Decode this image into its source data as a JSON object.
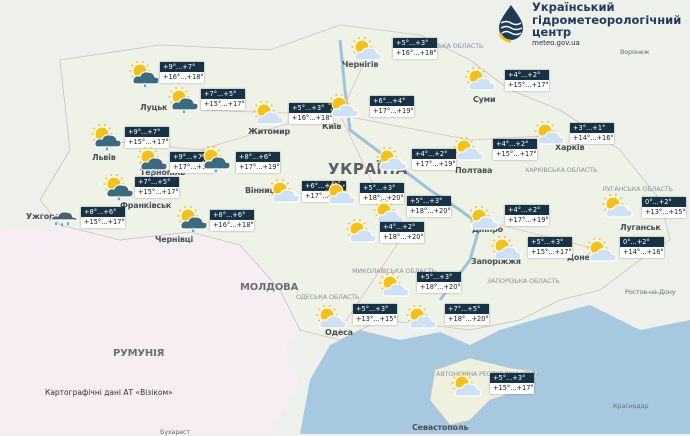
{
  "header": {
    "org_name_line1": "Український",
    "org_name_line2": "гідрометеорологічний",
    "org_name_line3": "центр",
    "website": "meteo.gov.ua",
    "logo_colors": {
      "navy": "#1f3b5c",
      "yellow": "#f2c318"
    }
  },
  "map_credit": "Картографічні дані АТ «Візіком»",
  "places": {
    "ukraine": "УКРАЇНА",
    "moldova": "МОЛДОВА",
    "romania": "РУМУНІЯ",
    "lutsk": "Луцьк",
    "zhytomyr": "Житомир",
    "lviv": "Львів",
    "ternopil": "Тернопіль",
    "frankivsk": "Франківськ",
    "uzhhorod": "Ужгород",
    "chernivtsi": "Чернівці",
    "vinnytsia": "Вінниця",
    "kyiv": "Київ",
    "chernihiv": "Чернігів",
    "sumy": "Суми",
    "poltava": "Полтава",
    "kharkiv": "Харків",
    "dnipro": "Дніпро",
    "zaporizhzhia": "Запоріжжя",
    "donetsk": "Донецьк",
    "luhansk": "Луганськ",
    "odesa": "Одеса",
    "sevastopol": "Севастополь",
    "krasnodar": "Краснодар",
    "rostov": "Ростов-на-Дону",
    "voronezh": "Воронеж",
    "bucharest": "Бухарест",
    "sumy_oblast": "СУМСЬКА ОБЛАСТЬ",
    "kharkiv_oblast": "ХАРКІВСЬКА ОБЛАСТЬ",
    "zaporizhzhia_oblast": "ЗАПОРІЗЬКА ОБЛАСТЬ",
    "mykolaiv_oblast": "МИКОЛАЇВСЬКА ОБЛАСТЬ",
    "odesa_oblast": "ОДЕСЬКА ОБЛАСТЬ",
    "luhansk_oblast": "ЛУГАНСЬКА ОБЛАСТЬ",
    "crimea": "АВТОНОМНА РЕСПУБЛІКА КРИМ"
  },
  "forecasts": [
    {
      "region": "volyn",
      "night": "+9°...+7°",
      "day": "+16°...+18°",
      "icon": "sun-cloud-rain"
    },
    {
      "region": "rivne",
      "night": "+7°...+5°",
      "day": "+15°...+17°",
      "icon": "sun-cloud-rain"
    },
    {
      "region": "zhytomyr",
      "night": "+5°...+3°",
      "day": "+16°...+18°",
      "icon": "sun-cloud"
    },
    {
      "region": "kyiv",
      "night": "+6°...+4°",
      "day": "+17°...+19°",
      "icon": "sun-cloud"
    },
    {
      "region": "chernihiv",
      "night": "+5°...+3°",
      "day": "+16°...+18°",
      "icon": "sun-cloud"
    },
    {
      "region": "sumy",
      "night": "+4°...+2°",
      "day": "+15°...+17°",
      "icon": "sun-cloud"
    },
    {
      "region": "kharkiv",
      "night": "+3°...+1°",
      "day": "+14°...+16°",
      "icon": "sun-cloud"
    },
    {
      "region": "poltava",
      "night": "+4°...+2°",
      "day": "+15°...+17°",
      "icon": "sun-cloud"
    },
    {
      "region": "cherkasy",
      "night": "+4°...+2°",
      "day": "+17°...+19°",
      "icon": "sun-cloud"
    },
    {
      "region": "lviv",
      "night": "+9°...+7°",
      "day": "+15°...+17°",
      "icon": "sun-cloud-rain"
    },
    {
      "region": "ternopil",
      "night": "+9°...+7°",
      "day": "+17°...+19°",
      "icon": "sun-cloud-rain"
    },
    {
      "region": "khmelnytskyi",
      "night": "+8°...+6°",
      "day": "+17°...+19°",
      "icon": "sun-cloud-rain"
    },
    {
      "region": "ivano-frankivsk",
      "night": "+7°...+5°",
      "day": "+15°...+17°",
      "icon": "sun-cloud-rain"
    },
    {
      "region": "zakarpattia",
      "night": "+8°...+6°",
      "day": "+15°...+17°",
      "icon": "heavy-rain"
    },
    {
      "region": "chernivtsi",
      "night": "+8°...+6°",
      "day": "+16°...+18°",
      "icon": "sun-cloud-rain"
    },
    {
      "region": "vinnytsia",
      "night": "+6°...+4°",
      "day": "+17°...+19°",
      "icon": "sun-cloud"
    },
    {
      "region": "uman",
      "night": "+5°...+3°",
      "day": "+18°...+20°",
      "icon": "sun-cloud"
    },
    {
      "region": "kropyvnytskyi",
      "night": "+5°...+3°",
      "day": "+18°...+20°",
      "icon": "sun-cloud"
    },
    {
      "region": "kirovohrad-south",
      "night": "+4°...+2°",
      "day": "+18°...+20°",
      "icon": "sun-cloud"
    },
    {
      "region": "dnipro",
      "night": "+4°...+2°",
      "day": "+17°...+19°",
      "icon": "sun-cloud"
    },
    {
      "region": "luhansk",
      "night": "0°...+2°",
      "day": "+13°...+15°",
      "icon": "sun-cloud"
    },
    {
      "region": "zaporizhzhia",
      "night": "+5°...+3°",
      "day": "+15°...+17°",
      "icon": "sun-cloud"
    },
    {
      "region": "donetsk",
      "night": "0°...+2°",
      "day": "+14°...+16°",
      "icon": "sun-cloud"
    },
    {
      "region": "mykolaiv",
      "night": "+5°...+3°",
      "day": "+18°...+20°",
      "icon": "sun-cloud"
    },
    {
      "region": "odesa",
      "night": "+5°...+3°",
      "day": "+13°...+15°",
      "icon": "sun-cloud"
    },
    {
      "region": "kherson",
      "night": "+7°...+5°",
      "day": "+18°...+20°",
      "icon": "sun-cloud"
    },
    {
      "region": "crimea",
      "night": "+5°...+3°",
      "day": "+15°...+17°",
      "icon": "sun-cloud"
    }
  ],
  "colors": {
    "label_dark": "#183245",
    "sea": "#9cc3dc",
    "land": "#eef0e8",
    "romania": "#f6eef3",
    "sun": "#f4c01a",
    "cloud": "#cfe1f5",
    "rain_cloud": "#3c6b80",
    "drop": "#2b8fd6"
  }
}
